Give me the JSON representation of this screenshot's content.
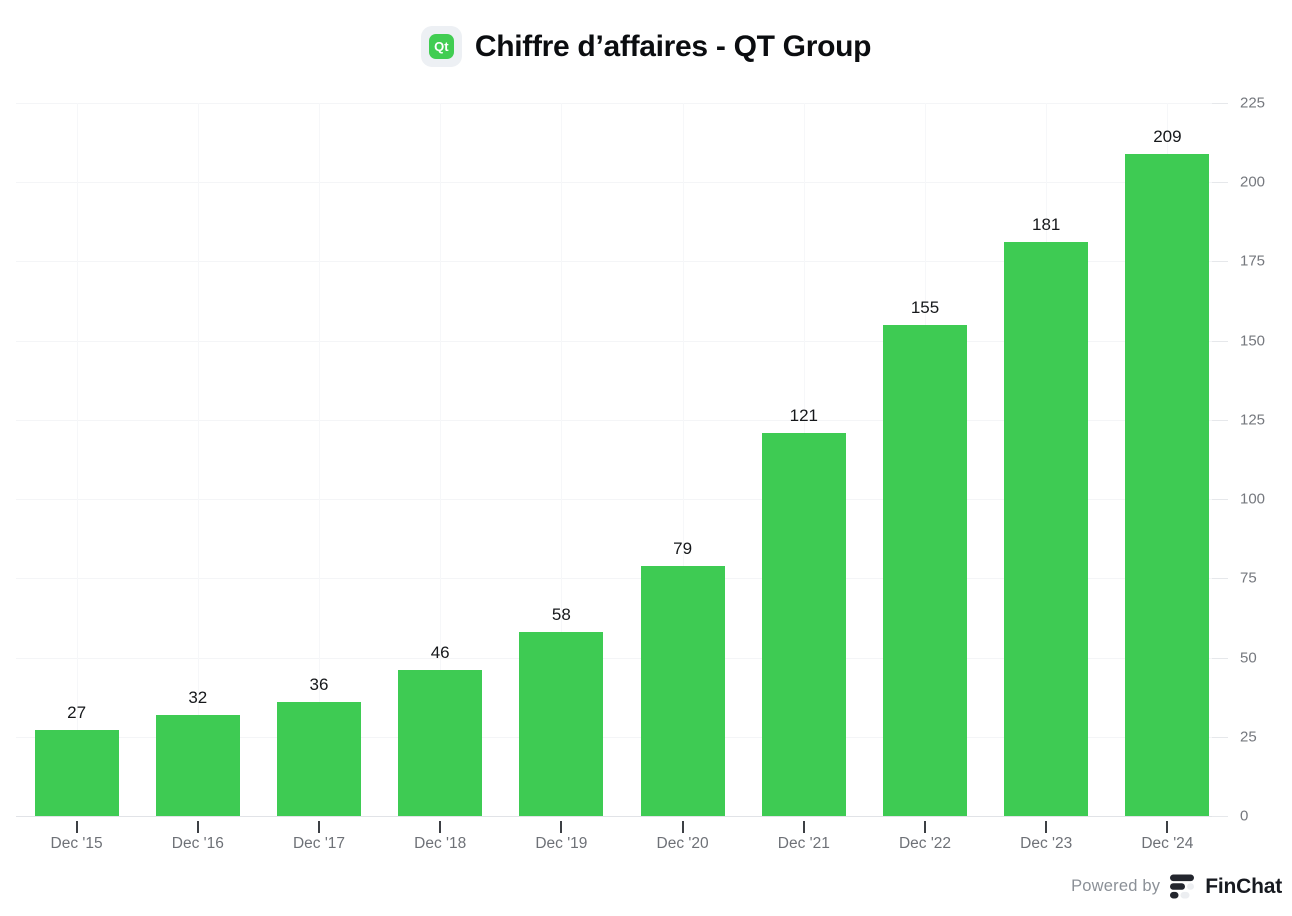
{
  "header": {
    "title": "Chiffre d’affaires - QT Group",
    "icon_label": "Qt"
  },
  "colors": {
    "bar": "#3ecb53",
    "qt_icon_green": "#41cd52",
    "qt_icon_bg": "#edf0f4",
    "grid": "#f4f5f7",
    "baseline": "#e1e3e7",
    "axis_label": "#6e7177",
    "value_label": "#16181b",
    "finchat_dark": "#23262e"
  },
  "chart_data": {
    "type": "bar",
    "title": "Chiffre d’affaires - QT Group",
    "categories": [
      "Dec '15",
      "Dec '16",
      "Dec '17",
      "Dec '18",
      "Dec '19",
      "Dec '20",
      "Dec '21",
      "Dec '22",
      "Dec '23",
      "Dec '24"
    ],
    "values": [
      27,
      32,
      36,
      46,
      58,
      79,
      121,
      155,
      181,
      209
    ],
    "xlabel": "",
    "ylabel": "",
    "ylim": [
      0,
      225
    ],
    "yticks": [
      0,
      25,
      50,
      75,
      100,
      125,
      150,
      175,
      200,
      225
    ],
    "grid": true,
    "legend": "none",
    "value_labels": true,
    "yaxis_side": "right",
    "bar_color": "#3ecb53"
  },
  "footer": {
    "powered_by": "Powered by",
    "brand": "FinChat"
  }
}
